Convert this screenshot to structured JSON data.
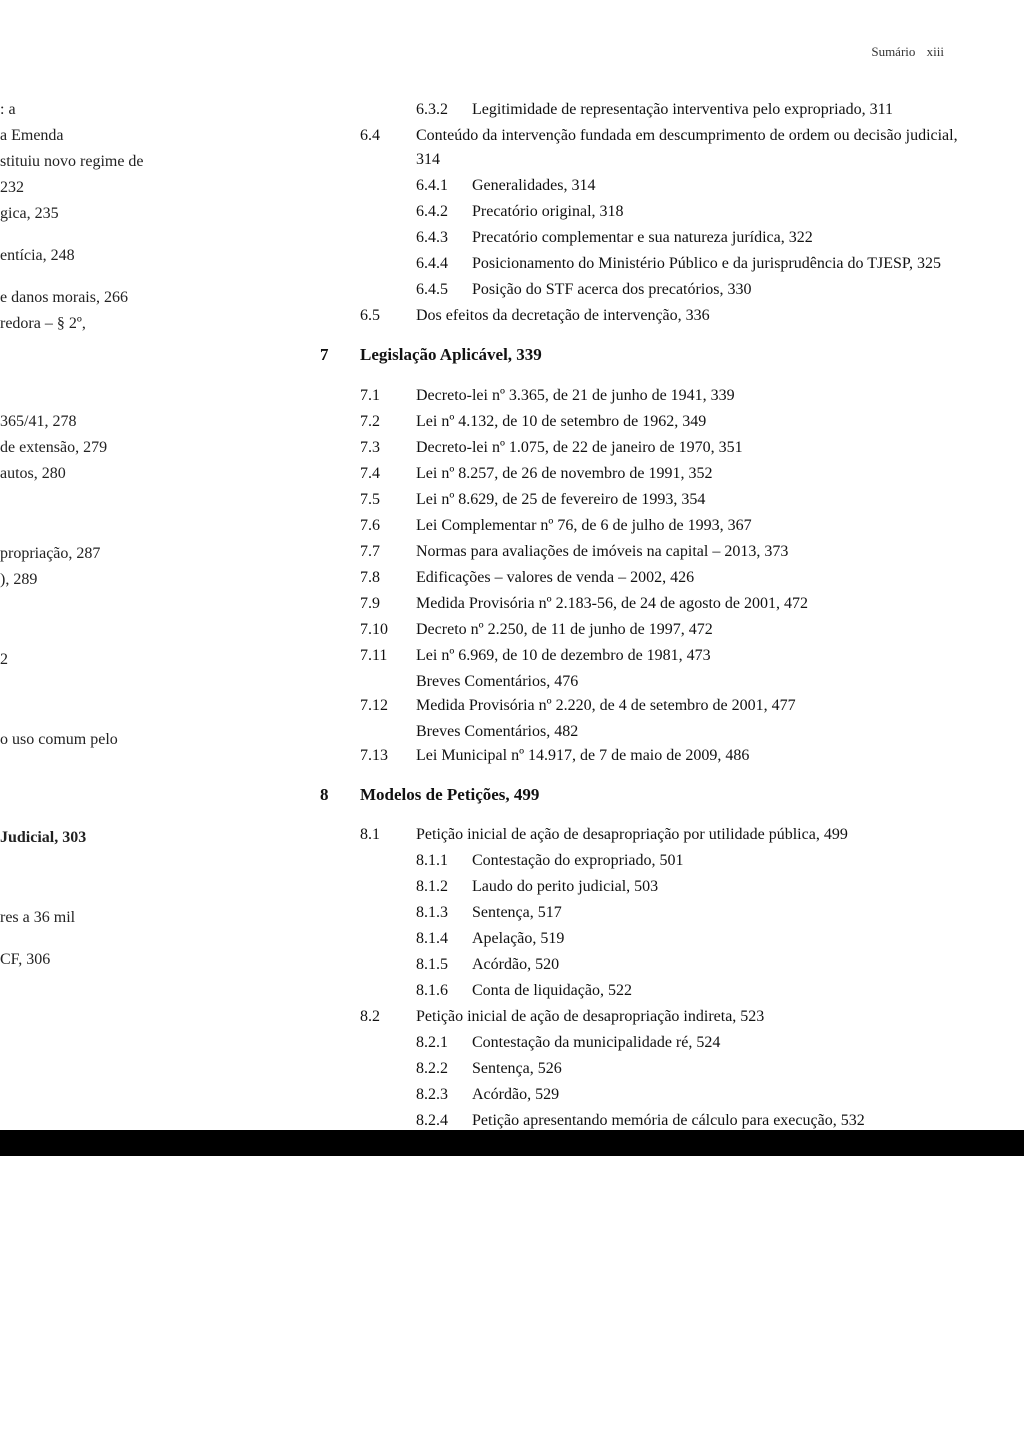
{
  "header": {
    "label": "Sumário",
    "page_roman": "xiii"
  },
  "left_fragments": {
    "f1": ": a",
    "f2": "a Emenda",
    "f3": "stituiu novo regime de",
    "f4": "232",
    "f5": "gica, 235",
    "f6": "entícia, 248",
    "f7": "e danos morais, 266",
    "f8": "redora – § 2º,",
    "f9": "365/41, 278",
    "f10": "de extensão, 279",
    "f11": "autos, 280",
    "f12": "propriação, 287",
    "f13": "), 289",
    "f14": "2",
    "f15": "o uso comum pelo",
    "f16": "Judicial, 303",
    "f17": "res a 36 mil",
    "f18": "CF, 306"
  },
  "s6": {
    "e_6_3_2": {
      "num": "6.3.2",
      "text": "Legitimidade de representação interventiva pelo expropriado, 311"
    },
    "e_6_4": {
      "num": "6.4",
      "text": "Conteúdo da intervenção fundada em descumprimento de ordem ou decisão judicial, 314"
    },
    "e_6_4_1": {
      "num": "6.4.1",
      "text": "Generalidades, 314"
    },
    "e_6_4_2": {
      "num": "6.4.2",
      "text": "Precatório original, 318"
    },
    "e_6_4_3": {
      "num": "6.4.3",
      "text": "Precatório complementar e sua natureza jurídica, 322"
    },
    "e_6_4_4": {
      "num": "6.4.4",
      "text": "Posicionamento do Ministério Público e da jurisprudência do TJESP, 325"
    },
    "e_6_4_5": {
      "num": "6.4.5",
      "text": "Posição do STF acerca dos precatórios, 330"
    },
    "e_6_5": {
      "num": "6.5",
      "text": "Dos efeitos da decretação de intervenção, 336"
    }
  },
  "s7": {
    "num": "7",
    "title": "Legislação Aplicável, 339",
    "e_7_1": {
      "num": "7.1",
      "text": "Decreto-lei nº 3.365, de 21 de junho de 1941, 339"
    },
    "e_7_2": {
      "num": "7.2",
      "text": "Lei nº 4.132, de 10 de setembro de 1962, 349"
    },
    "e_7_3": {
      "num": "7.3",
      "text": "Decreto-lei nº 1.075, de 22 de janeiro de 1970, 351"
    },
    "e_7_4": {
      "num": "7.4",
      "text": "Lei nº 8.257, de 26 de novembro de 1991, 352"
    },
    "e_7_5": {
      "num": "7.5",
      "text": "Lei nº 8.629, de 25 de fevereiro de 1993, 354"
    },
    "e_7_6": {
      "num": "7.6",
      "text": "Lei Complementar nº 76, de 6 de julho de 1993, 367"
    },
    "e_7_7": {
      "num": "7.7",
      "text": "Normas para avaliações de imóveis na capital – 2013, 373"
    },
    "e_7_8": {
      "num": "7.8",
      "text": "Edificações – valores de venda – 2002, 426"
    },
    "e_7_9": {
      "num": "7.9",
      "text": "Medida Provisória nº 2.183-56, de 24 de agosto de 2001, 472"
    },
    "e_7_10": {
      "num": "7.10",
      "text": "Decreto nº 2.250, de 11 de junho de 1997, 472"
    },
    "e_7_11": {
      "num": "7.11",
      "text": "Lei nº 6.969, de 10 de dezembro de 1981, 473"
    },
    "e_7_11b": "Breves Comentários, 476",
    "e_7_12": {
      "num": "7.12",
      "text": "Medida Provisória nº 2.220, de 4 de setembro de 2001, 477"
    },
    "e_7_12b": "Breves Comentários, 482",
    "e_7_13": {
      "num": "7.13",
      "text": "Lei Municipal nº 14.917, de 7 de maio de 2009, 486"
    }
  },
  "s8": {
    "num": "8",
    "title": "Modelos de Petições, 499",
    "e_8_1": {
      "num": "8.1",
      "text": "Petição inicial de ação de desapropriação por utilidade pública, 499"
    },
    "e_8_1_1": {
      "num": "8.1.1",
      "text": "Contestação do expropriado, 501"
    },
    "e_8_1_2": {
      "num": "8.1.2",
      "text": "Laudo do perito judicial, 503"
    },
    "e_8_1_3": {
      "num": "8.1.3",
      "text": "Sentença, 517"
    },
    "e_8_1_4": {
      "num": "8.1.4",
      "text": "Apelação, 519"
    },
    "e_8_1_5": {
      "num": "8.1.5",
      "text": "Acórdão, 520"
    },
    "e_8_1_6": {
      "num": "8.1.6",
      "text": "Conta de liquidação, 522"
    },
    "e_8_2": {
      "num": "8.2",
      "text": "Petição inicial de ação de desapropriação indireta, 523"
    },
    "e_8_2_1": {
      "num": "8.2.1",
      "text": "Contestação da municipalidade ré, 524"
    },
    "e_8_2_2": {
      "num": "8.2.2",
      "text": "Sentença, 526"
    },
    "e_8_2_3": {
      "num": "8.2.3",
      "text": "Acórdão, 529"
    },
    "e_8_2_4": {
      "num": "8.2.4",
      "text": "Petição apresentando memória de cálculo para execução, 532"
    }
  }
}
